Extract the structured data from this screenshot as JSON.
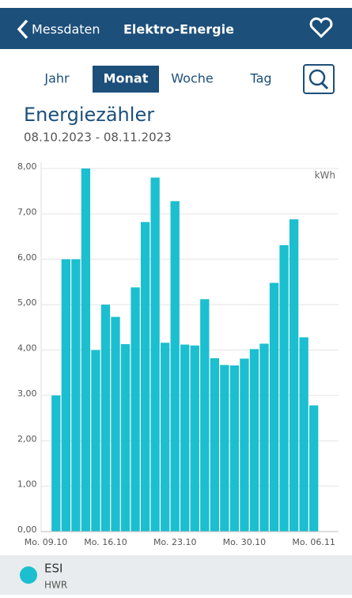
{
  "header": {
    "back": "Messdaten",
    "title": "Elektro-Energie"
  },
  "tabs": {
    "items": [
      "Jahr",
      "Monat",
      "Woche",
      "Tag"
    ],
    "selected": 1
  },
  "chart_data": {
    "type": "bar",
    "title": "Energiezähler",
    "subtitle": "08.10.2023 - 08.11.2023",
    "unit": "kWh",
    "categories": [
      null,
      "Mo. 09.10",
      null,
      null,
      null,
      null,
      null,
      null,
      "Mo. 16.10",
      null,
      null,
      null,
      null,
      null,
      null,
      "Mo. 23.10",
      null,
      null,
      null,
      null,
      null,
      null,
      "Mo. 30.10",
      null,
      null,
      null,
      null,
      null,
      null,
      "Mo. 06.11",
      null,
      null
    ],
    "series": [
      {
        "name": "ESI",
        "subname": "HWR",
        "color": "#1bbfd0",
        "values": [
          null,
          null,
          null,
          3.0,
          6.0,
          6.0,
          8.0,
          4.0,
          5.0,
          4.73,
          4.13,
          5.38,
          6.82,
          7.8,
          4.16,
          7.28,
          4.12,
          4.1,
          5.12,
          3.82,
          3.67,
          3.66,
          3.81,
          4.02,
          4.14,
          5.48,
          6.31,
          6.88,
          4.28,
          2.78,
          null,
          null
        ]
      }
    ],
    "ylim": [
      0,
      8
    ],
    "yticks": [
      {
        "value": 0,
        "label": "0,00"
      },
      {
        "value": 1,
        "label": "1,00"
      },
      {
        "value": 2,
        "label": "2,00"
      },
      {
        "value": 3,
        "label": "3,00"
      },
      {
        "value": 4,
        "label": "4,00"
      },
      {
        "value": 5,
        "label": "5,00"
      },
      {
        "value": 6,
        "label": "6,00"
      },
      {
        "value": 7,
        "label": "7,00"
      },
      {
        "value": 8,
        "label": "8,00"
      }
    ],
    "grid": true
  }
}
